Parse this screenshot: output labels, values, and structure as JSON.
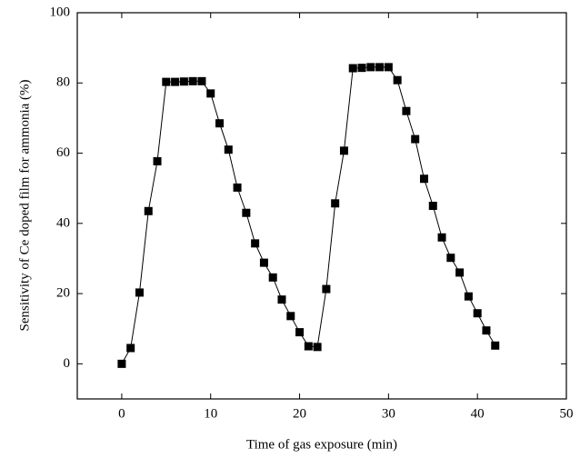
{
  "chart_data": {
    "type": "line",
    "x_label": "Time of gas exposure (min)",
    "y_label": "Sensitivity of Ce doped film for ammonia (%)",
    "x": [
      0,
      1,
      2,
      3,
      4,
      5,
      6,
      7,
      8,
      9,
      10,
      11,
      12,
      13,
      14,
      15,
      16,
      17,
      18,
      19,
      20,
      21,
      22,
      23,
      24,
      25,
      26,
      27,
      28,
      29,
      30,
      31,
      32,
      33,
      34,
      35,
      36,
      37,
      38,
      39,
      40,
      41,
      42
    ],
    "series": [
      {
        "color": "#000000",
        "marker": "square",
        "values": [
          0,
          4.5,
          20.3,
          43.5,
          57.7,
          80.3,
          80.3,
          80.4,
          80.5,
          80.5,
          77,
          68.5,
          61,
          50.2,
          43,
          34.3,
          28.8,
          24.6,
          18.3,
          13.6,
          9,
          5,
          4.8,
          21.3,
          45.7,
          60.7,
          84.2,
          84.3,
          84.5,
          84.5,
          84.5,
          80.8,
          72,
          64,
          52.7,
          45,
          36,
          30.2,
          26,
          19.2,
          14.4,
          9.5,
          5.2
        ]
      }
    ],
    "xlim": [
      -5,
      50
    ],
    "xticks": [
      0,
      10,
      20,
      30,
      40,
      50
    ],
    "ylim": [
      -10,
      100
    ],
    "yticks": [
      0,
      20,
      40,
      60,
      80,
      100
    ]
  }
}
